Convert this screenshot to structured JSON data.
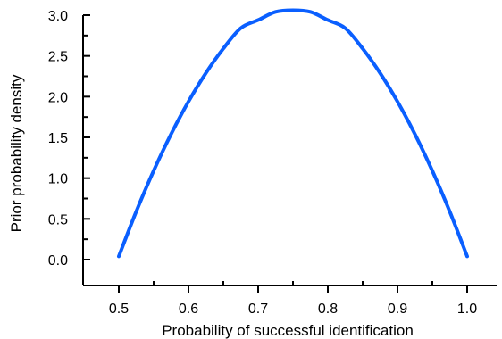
{
  "chart_data": {
    "type": "line",
    "title": "",
    "xlabel": "Probability of successful identification",
    "ylabel": "Prior probability density",
    "xlim": [
      0.45,
      1.05
    ],
    "ylim": [
      -0.3,
      3.05
    ],
    "x_ticks": [
      0.5,
      0.6,
      0.7,
      0.8,
      0.9,
      1.0
    ],
    "x_tick_labels": [
      "0.5",
      "0.6",
      "0.7",
      "0.8",
      "0.9",
      "1.0"
    ],
    "y_ticks": [
      0.0,
      0.5,
      1.0,
      1.5,
      2.0,
      2.5,
      3.0
    ],
    "y_tick_labels": [
      "0.0",
      "0.5",
      "1.0",
      "1.5",
      "2.0",
      "2.5",
      "3.0"
    ],
    "x_minor_ticks": [
      0.55,
      0.65,
      0.75,
      0.85,
      0.95
    ],
    "y_minor_ticks": [
      0.25,
      0.75,
      1.25,
      1.75,
      2.25,
      2.75
    ],
    "grid": false,
    "series": [
      {
        "color": "#0a5fff",
        "x": [
          0.5,
          0.525,
          0.55,
          0.575,
          0.6,
          0.625,
          0.65,
          0.675,
          0.7,
          0.725,
          0.75,
          0.775,
          0.8,
          0.825,
          0.85,
          0.875,
          0.9,
          0.925,
          0.95,
          0.975,
          1.0
        ],
        "y": [
          0.04,
          0.59,
          1.09,
          1.54,
          1.94,
          2.29,
          2.59,
          2.84,
          2.94,
          3.04,
          3.06,
          3.04,
          2.94,
          2.84,
          2.59,
          2.29,
          1.94,
          1.54,
          1.09,
          0.59,
          0.04
        ]
      }
    ]
  }
}
